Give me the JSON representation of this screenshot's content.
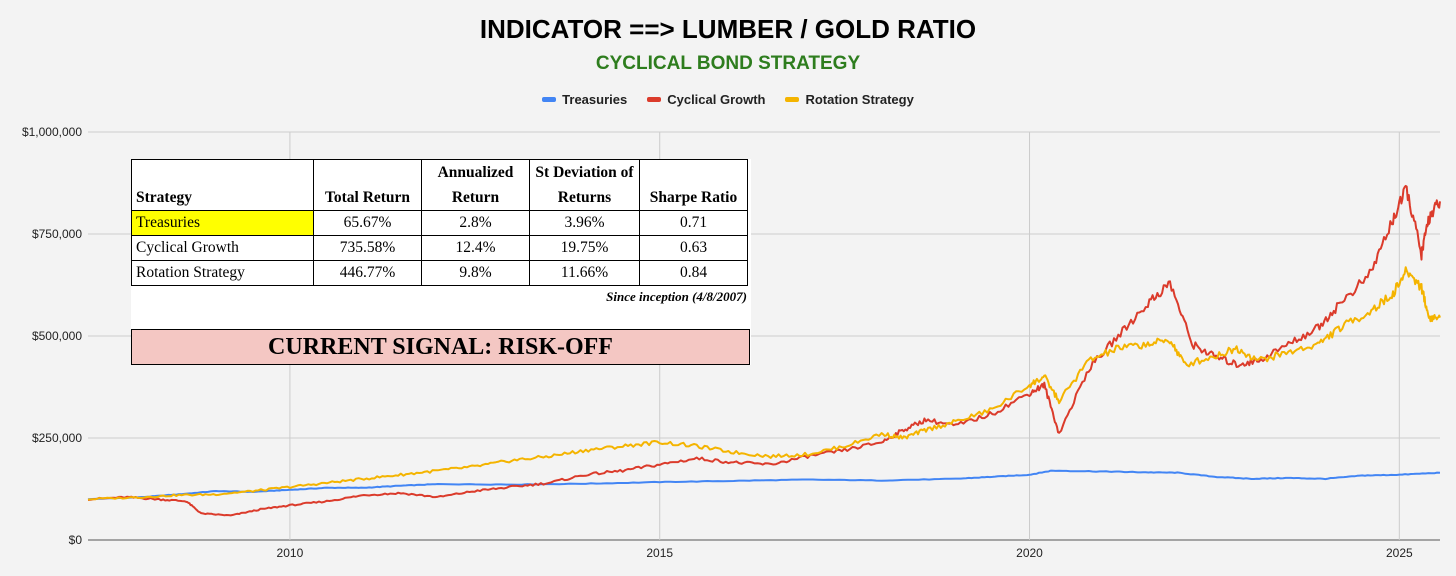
{
  "header": {
    "title": "INDICATOR ==> LUMBER / GOLD RATIO",
    "subtitle": "CYCLICAL BOND STRATEGY"
  },
  "colors": {
    "treasuries": "#4285f4",
    "cyclical": "#db3b2b",
    "rotation": "#f4b400",
    "subtitle": "#2e7d1e",
    "signal_bg": "#f4c7c3",
    "highlight": "#ffff00"
  },
  "stats_table": {
    "headers": [
      "Strategy",
      "Total Return",
      "Annualized Return",
      "St Deviation of Returns",
      "Sharpe Ratio"
    ],
    "rows": [
      {
        "strategy": "Treasuries",
        "total": "65.67%",
        "annualized": "2.8%",
        "stdev": "3.96%",
        "sharpe": "0.71"
      },
      {
        "strategy": "Cyclical Growth",
        "total": "735.58%",
        "annualized": "12.4%",
        "stdev": "19.75%",
        "sharpe": "0.63"
      },
      {
        "strategy": "Rotation Strategy",
        "total": "446.77%",
        "annualized": "9.8%",
        "stdev": "11.66%",
        "sharpe": "0.84"
      }
    ],
    "note": "Since inception (4/8/2007)"
  },
  "signal": "CURRENT SIGNAL: RISK-OFF",
  "chart_data": {
    "type": "line",
    "ylim": [
      0,
      1000000
    ],
    "xlim": [
      2007.27,
      2025.55
    ],
    "yticks": [
      {
        "value": 0,
        "label": "$0"
      },
      {
        "value": 250000,
        "label": "$250,000"
      },
      {
        "value": 500000,
        "label": "$500,000"
      },
      {
        "value": 750000,
        "label": "$750,000"
      },
      {
        "value": 1000000,
        "label": "$1,000,000"
      }
    ],
    "xticks": [
      {
        "value": 2010,
        "label": "2010"
      },
      {
        "value": 2015,
        "label": "2015"
      },
      {
        "value": 2020,
        "label": "2020"
      },
      {
        "value": 2025,
        "label": "2025"
      }
    ],
    "legend_position": "top",
    "series": [
      {
        "name": "Treasuries",
        "color": "#4285f4",
        "x": [
          2007.27,
          2008.0,
          2008.5,
          2009.0,
          2009.5,
          2010.0,
          2010.5,
          2011.0,
          2011.5,
          2012.0,
          2013.0,
          2014.0,
          2015.0,
          2016.0,
          2017.0,
          2018.0,
          2019.0,
          2019.5,
          2020.0,
          2020.3,
          2021.0,
          2021.5,
          2022.0,
          2022.5,
          2023.0,
          2023.5,
          2024.0,
          2024.5,
          2025.0,
          2025.55
        ],
        "y": [
          100000,
          105000,
          112000,
          120000,
          118000,
          123000,
          128000,
          128000,
          133000,
          137000,
          136000,
          138000,
          142000,
          145000,
          148000,
          146000,
          150000,
          155000,
          160000,
          170000,
          168000,
          166000,
          165000,
          155000,
          150000,
          152000,
          150000,
          158000,
          160000,
          165000
        ]
      },
      {
        "name": "Cyclical Growth",
        "color": "#db3b2b",
        "x": [
          2007.27,
          2007.8,
          2008.2,
          2008.6,
          2008.8,
          2009.2,
          2009.6,
          2010.0,
          2010.5,
          2011.0,
          2011.5,
          2012.0,
          2012.5,
          2013.0,
          2013.5,
          2014.0,
          2014.5,
          2015.0,
          2015.5,
          2016.0,
          2016.5,
          2017.0,
          2017.5,
          2018.0,
          2018.3,
          2018.6,
          2019.0,
          2019.5,
          2020.0,
          2020.2,
          2020.4,
          2020.8,
          2021.2,
          2021.6,
          2021.9,
          2022.2,
          2022.5,
          2022.8,
          2023.1,
          2023.5,
          2023.9,
          2024.2,
          2024.6,
          2024.9,
          2025.1,
          2025.3,
          2025.4,
          2025.55
        ],
        "y": [
          100000,
          105000,
          100000,
          95000,
          65000,
          60000,
          75000,
          85000,
          95000,
          110000,
          115000,
          105000,
          120000,
          130000,
          140000,
          160000,
          170000,
          185000,
          200000,
          190000,
          185000,
          205000,
          220000,
          240000,
          270000,
          295000,
          280000,
          310000,
          360000,
          380000,
          260000,
          420000,
          500000,
          580000,
          630000,
          480000,
          450000,
          430000,
          440000,
          480000,
          520000,
          580000,
          650000,
          780000,
          860000,
          700000,
          790000,
          830000
        ]
      },
      {
        "name": "Rotation Strategy",
        "color": "#f4b400",
        "x": [
          2007.27,
          2008.0,
          2008.5,
          2009.0,
          2009.5,
          2010.0,
          2010.5,
          2011.0,
          2011.5,
          2012.0,
          2012.5,
          2013.0,
          2013.5,
          2014.0,
          2014.5,
          2015.0,
          2015.5,
          2016.0,
          2016.5,
          2017.0,
          2017.5,
          2018.0,
          2018.3,
          2018.6,
          2019.0,
          2019.5,
          2020.0,
          2020.2,
          2020.4,
          2020.8,
          2021.2,
          2021.6,
          2021.9,
          2022.1,
          2022.5,
          2022.8,
          2023.1,
          2023.5,
          2023.9,
          2024.2,
          2024.6,
          2024.9,
          2025.1,
          2025.3,
          2025.4,
          2025.55
        ],
        "y": [
          100000,
          105000,
          110000,
          112000,
          120000,
          130000,
          140000,
          150000,
          160000,
          170000,
          180000,
          195000,
          205000,
          220000,
          230000,
          240000,
          230000,
          215000,
          205000,
          210000,
          230000,
          260000,
          250000,
          270000,
          290000,
          320000,
          380000,
          400000,
          340000,
          440000,
          470000,
          480000,
          490000,
          430000,
          450000,
          470000,
          440000,
          460000,
          480000,
          520000,
          560000,
          600000,
          660000,
          620000,
          545000,
          545000
        ]
      }
    ]
  }
}
